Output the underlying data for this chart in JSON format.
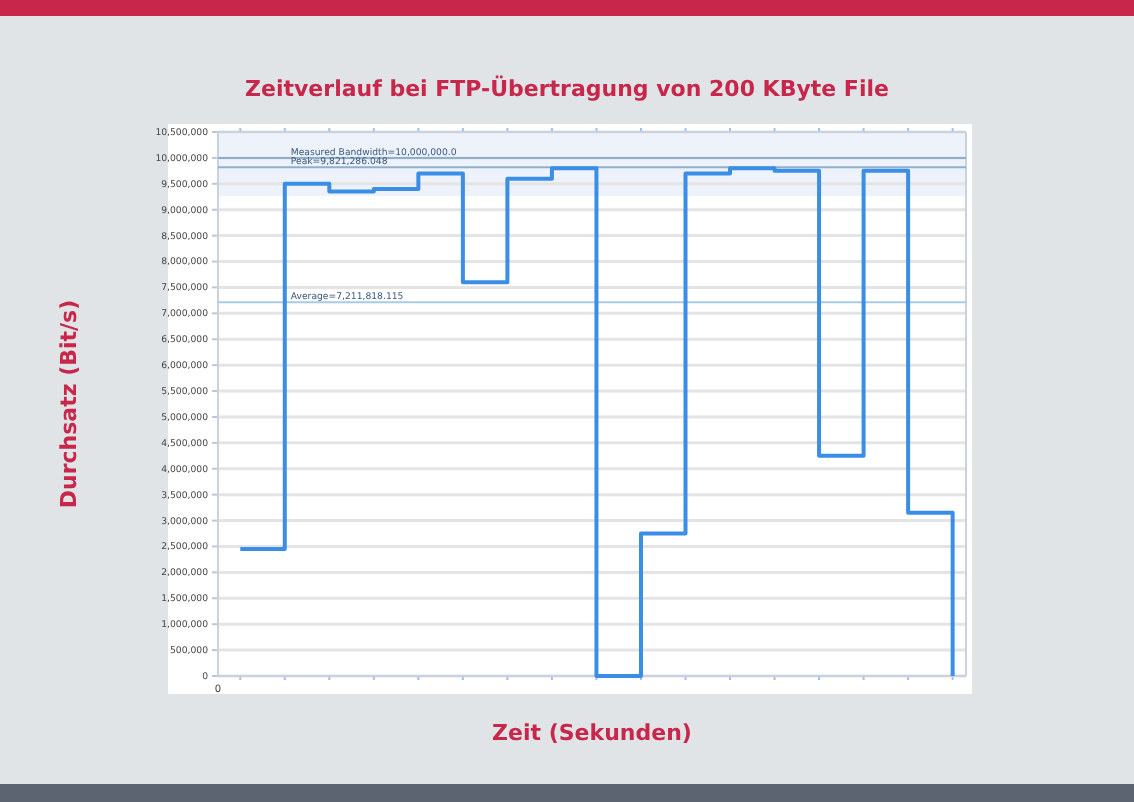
{
  "chart_data": {
    "type": "step",
    "title": "Zeitverlauf bei FTP-Übertragung von 200 KByte File",
    "xlabel": "Zeit (Sekunden)",
    "ylabel": "Durchsatz (Bit/s)",
    "categories": [
      null,
      null,
      null,
      null,
      null,
      null,
      null,
      null,
      null,
      null,
      null,
      null,
      null,
      null,
      null,
      null,
      null
    ],
    "annotations": [
      "0"
    ],
    "series": [
      {
        "color": "#3a8ee6",
        "values": [
          2450000,
          9500000,
          9350000,
          9400000,
          9700000,
          7600000,
          9600000,
          9800000,
          0,
          2750000,
          9700000,
          9800000,
          9750000,
          4250000,
          9750000,
          3150000,
          0
        ]
      }
    ],
    "ylim": [
      0,
      10500000
    ],
    "yticks": [
      {
        "value": 0,
        "label": "0"
      },
      {
        "value": 500000,
        "label": "500,000"
      },
      {
        "value": 1000000,
        "label": "1,000,000"
      },
      {
        "value": 1500000,
        "label": "1,500,000"
      },
      {
        "value": 2000000,
        "label": "2,000,000"
      },
      {
        "value": 2500000,
        "label": "2,500,000"
      },
      {
        "value": 3000000,
        "label": "3,000,000"
      },
      {
        "value": 3500000,
        "label": "3,500,000"
      },
      {
        "value": 4000000,
        "label": "4,000,000"
      },
      {
        "value": 4500000,
        "label": "4,500,000"
      },
      {
        "value": 5000000,
        "label": "5,000,000"
      },
      {
        "value": 5500000,
        "label": "5,500,000"
      },
      {
        "value": 6000000,
        "label": "6,000,000"
      },
      {
        "value": 6500000,
        "label": "6,500,000"
      },
      {
        "value": 7000000,
        "label": "7,000,000"
      },
      {
        "value": 7500000,
        "label": "7,500,000"
      },
      {
        "value": 8000000,
        "label": "8,000,000"
      },
      {
        "value": 8500000,
        "label": "8,500,000"
      },
      {
        "value": 9000000,
        "label": "9,000,000"
      },
      {
        "value": 9500000,
        "label": "9,500,000"
      },
      {
        "value": 10000000,
        "label": "10,000,000"
      },
      {
        "value": 10500000,
        "label": "10,500,000"
      }
    ],
    "ref_lines": [
      {
        "axis": "y",
        "value": 10000000,
        "label": "Measured Bandwidth=10,000,000.0",
        "color": "#8fb0cc"
      },
      {
        "axis": "y",
        "value": 9821286.048,
        "label": "Peak=9,821,286.048",
        "color": "#8fb0cc"
      },
      {
        "axis": "y",
        "value": 7211818.115,
        "label": "Average=7,211,818.115",
        "color": "#a9cbe3"
      }
    ],
    "grid": "y"
  }
}
